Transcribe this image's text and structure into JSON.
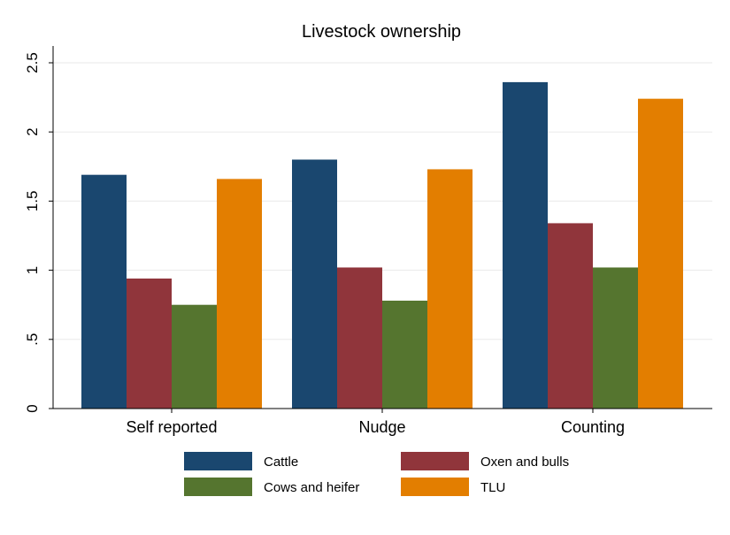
{
  "chart_data": {
    "type": "bar",
    "title": "Livestock ownership",
    "xlabel": "",
    "ylabel": "",
    "categories": [
      "Self reported",
      "Nudge",
      "Counting"
    ],
    "series": [
      {
        "name": "Cattle",
        "color": "#1a476f",
        "values": [
          1.69,
          1.8,
          2.36
        ]
      },
      {
        "name": "Oxen and bulls",
        "color": "#90353b",
        "values": [
          0.94,
          1.02,
          1.34
        ]
      },
      {
        "name": "Cows and heifer",
        "color": "#55752f",
        "values": [
          0.75,
          0.78,
          1.02
        ]
      },
      {
        "name": "TLU",
        "color": "#e37e00",
        "values": [
          1.66,
          1.73,
          2.24
        ]
      }
    ],
    "yticks": [
      {
        "value": 0,
        "label": "0"
      },
      {
        "value": 0.5,
        "label": ".5"
      },
      {
        "value": 1,
        "label": "1"
      },
      {
        "value": 1.5,
        "label": "1.5"
      },
      {
        "value": 2,
        "label": "2"
      },
      {
        "value": 2.5,
        "label": "2.5"
      }
    ],
    "ylim": [
      0,
      2.5
    ],
    "grid": true,
    "legend_position": "bottom"
  }
}
